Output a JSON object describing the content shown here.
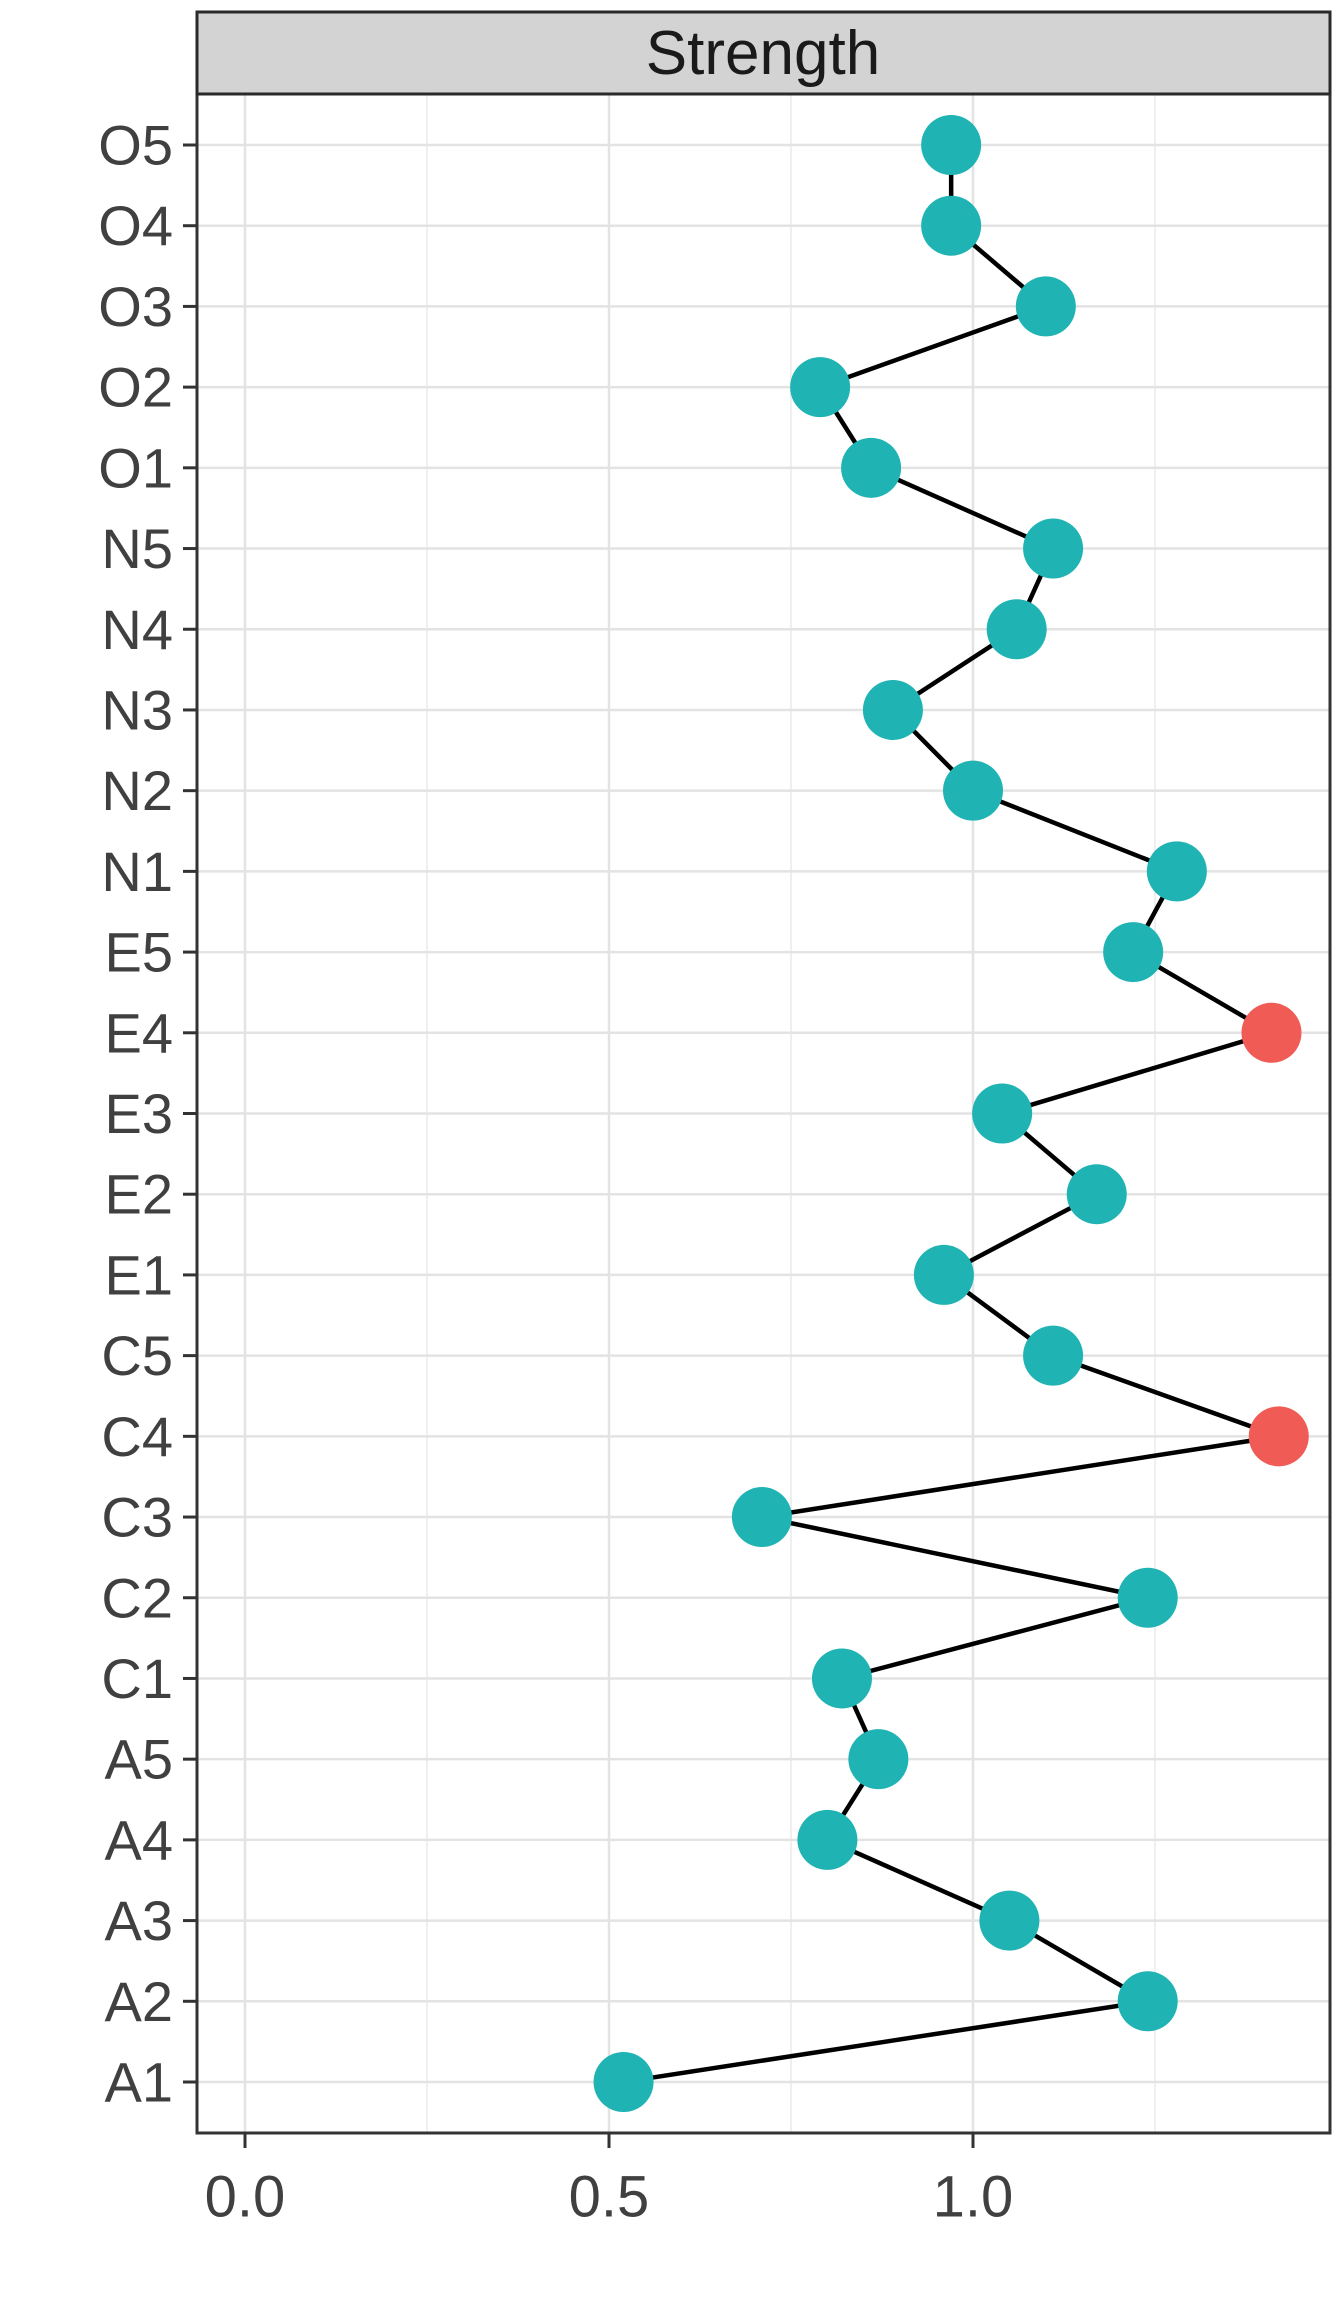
{
  "strip": {
    "title": "Strength"
  },
  "chart_data": {
    "type": "line",
    "orientation": "horizontal",
    "title": "Strength",
    "xlabel": "",
    "ylabel": "",
    "legend": "none",
    "grid": true,
    "categories": [
      "O5",
      "O4",
      "O3",
      "O2",
      "O1",
      "N5",
      "N4",
      "N3",
      "N2",
      "N1",
      "E5",
      "E4",
      "E3",
      "E2",
      "E1",
      "C5",
      "C4",
      "C3",
      "C2",
      "C1",
      "A5",
      "A4",
      "A3",
      "A2",
      "A1"
    ],
    "values": [
      0.97,
      0.97,
      1.1,
      0.79,
      0.86,
      1.11,
      1.06,
      0.89,
      1.0,
      1.28,
      1.22,
      1.41,
      1.04,
      1.17,
      0.96,
      1.11,
      1.42,
      0.71,
      1.24,
      0.82,
      0.87,
      0.8,
      1.05,
      1.24,
      0.52
    ],
    "highlighted_categories": [
      "E4",
      "C4"
    ],
    "xlim": [
      -0.07,
      1.49
    ],
    "x_ticks": [
      0.0,
      0.5,
      1.0
    ],
    "x_tick_labels": [
      "0.0",
      "0.5",
      "1.0"
    ],
    "x_minor_ticks": [
      0.25,
      0.75,
      1.25
    ],
    "colors": {
      "point": "#1fb3b3",
      "highlight": "#f05b55",
      "line": "#000000",
      "strip_background": "#d3d3d3",
      "grid_major": "#e3e3e3",
      "grid_minor": "#efefef",
      "axis_text": "#404040"
    }
  }
}
